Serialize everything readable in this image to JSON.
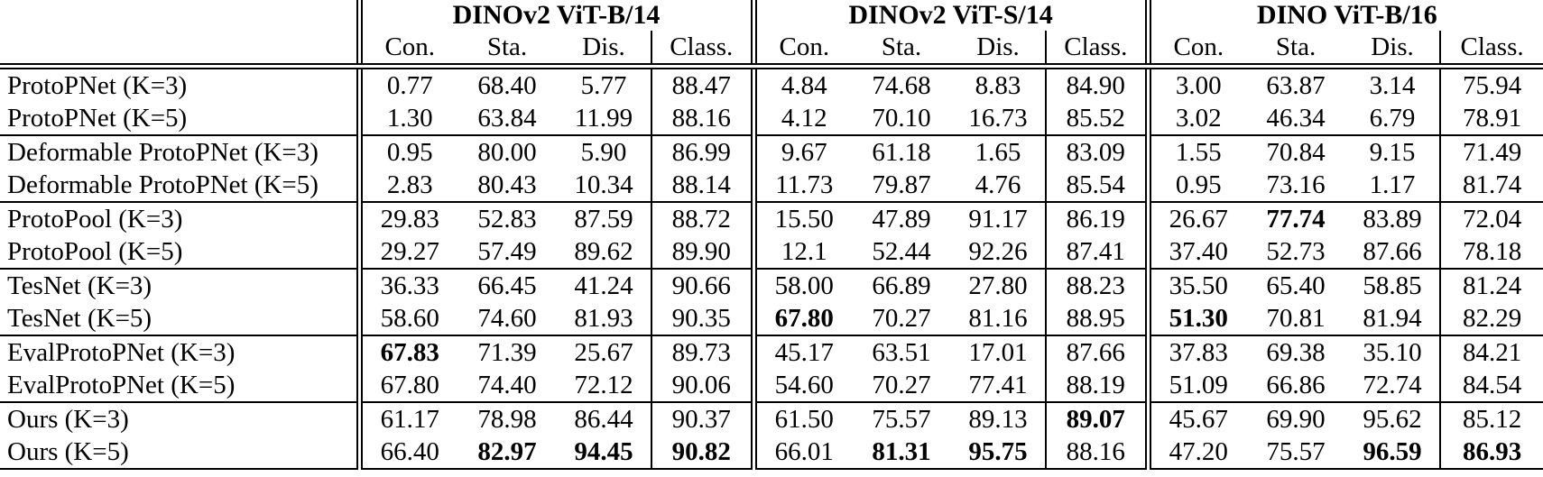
{
  "table": {
    "groups": [
      {
        "label": "DINOv2 ViT-B/14",
        "columns": [
          "Con.",
          "Sta.",
          "Dis.",
          "Class."
        ]
      },
      {
        "label": "DINOv2 ViT-S/14",
        "columns": [
          "Con.",
          "Sta.",
          "Dis.",
          "Class."
        ]
      },
      {
        "label": "DINO ViT-B/16",
        "columns": [
          "Con.",
          "Sta.",
          "Dis.",
          "Class."
        ]
      }
    ],
    "rows": [
      {
        "label": "ProtoPNet (K=3)",
        "cells": [
          "0.77",
          "68.40",
          "5.77",
          "88.47",
          "4.84",
          "74.68",
          "8.83",
          "84.90",
          "3.00",
          "63.87",
          "3.14",
          "75.94"
        ],
        "bold": []
      },
      {
        "label": "ProtoPNet (K=5)",
        "cells": [
          "1.30",
          "63.84",
          "11.99",
          "88.16",
          "4.12",
          "70.10",
          "16.73",
          "85.52",
          "3.02",
          "46.34",
          "6.79",
          "78.91"
        ],
        "bold": []
      },
      {
        "label": "Deformable ProtoPNet (K=3)",
        "cells": [
          "0.95",
          "80.00",
          "5.90",
          "86.99",
          "9.67",
          "61.18",
          "1.65",
          "83.09",
          "1.55",
          "70.84",
          "9.15",
          "71.49"
        ],
        "bold": []
      },
      {
        "label": "Deformable ProtoPNet (K=5)",
        "cells": [
          "2.83",
          "80.43",
          "10.34",
          "88.14",
          "11.73",
          "79.87",
          "4.76",
          "85.54",
          "0.95",
          "73.16",
          "1.17",
          "81.74"
        ],
        "bold": []
      },
      {
        "label": "ProtoPool (K=3)",
        "cells": [
          "29.83",
          "52.83",
          "87.59",
          "88.72",
          "15.50",
          "47.89",
          "91.17",
          "86.19",
          "26.67",
          "77.74",
          "83.89",
          "72.04"
        ],
        "bold": [
          9
        ]
      },
      {
        "label": "ProtoPool (K=5)",
        "cells": [
          "29.27",
          "57.49",
          "89.62",
          "89.90",
          "12.1",
          "52.44",
          "92.26",
          "87.41",
          "37.40",
          "52.73",
          "87.66",
          "78.18"
        ],
        "bold": []
      },
      {
        "label": "TesNet (K=3)",
        "cells": [
          "36.33",
          "66.45",
          "41.24",
          "90.66",
          "58.00",
          "66.89",
          "27.80",
          "88.23",
          "35.50",
          "65.40",
          "58.85",
          "81.24"
        ],
        "bold": []
      },
      {
        "label": "TesNet (K=5)",
        "cells": [
          "58.60",
          "74.60",
          "81.93",
          "90.35",
          "67.80",
          "70.27",
          "81.16",
          "88.95",
          "51.30",
          "70.81",
          "81.94",
          "82.29"
        ],
        "bold": [
          4,
          8
        ]
      },
      {
        "label": "EvalProtoPNet (K=3)",
        "cells": [
          "67.83",
          "71.39",
          "25.67",
          "89.73",
          "45.17",
          "63.51",
          "17.01",
          "87.66",
          "37.83",
          "69.38",
          "35.10",
          "84.21"
        ],
        "bold": [
          0
        ]
      },
      {
        "label": "EvalProtoPNet (K=5)",
        "cells": [
          "67.80",
          "74.40",
          "72.12",
          "90.06",
          "54.60",
          "70.27",
          "77.41",
          "88.19",
          "51.09",
          "66.86",
          "72.74",
          "84.54"
        ],
        "bold": []
      },
      {
        "label": "Ours (K=3)",
        "cells": [
          "61.17",
          "78.98",
          "86.44",
          "90.37",
          "61.50",
          "75.57",
          "89.13",
          "89.07",
          "45.67",
          "69.90",
          "95.62",
          "85.12"
        ],
        "bold": [
          7
        ]
      },
      {
        "label": "Ours (K=5)",
        "cells": [
          "66.40",
          "82.97",
          "94.45",
          "90.82",
          "66.01",
          "81.31",
          "95.75",
          "88.16",
          "47.20",
          "75.57",
          "96.59",
          "86.93"
        ],
        "bold": [
          1,
          2,
          3,
          5,
          6,
          10,
          11
        ]
      }
    ]
  }
}
